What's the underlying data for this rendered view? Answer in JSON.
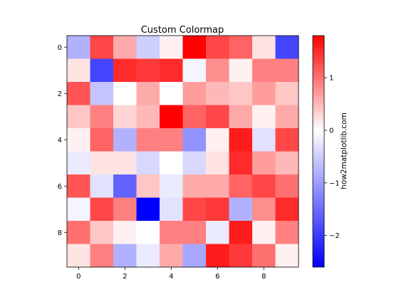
{
  "chart_data": {
    "type": "heatmap",
    "title": "Custom Colormap",
    "xlabel": "",
    "ylabel": "",
    "x_ticks": [
      0,
      2,
      4,
      6,
      8
    ],
    "y_ticks": [
      0,
      2,
      4,
      6,
      8
    ],
    "colorbar": {
      "label": "how2matplotlib.com",
      "vmin": -2.6,
      "vmax": 1.8,
      "ticks": [
        1,
        0,
        -1,
        -2
      ],
      "tick_labels": [
        "1",
        "0",
        "−1",
        "−2"
      ],
      "colormap": [
        "#0000ff",
        "#ffffff",
        "#ff0000"
      ]
    },
    "values": [
      [
        -0.8,
        1.3,
        0.6,
        -0.5,
        0.1,
        1.8,
        1.3,
        1.1,
        0.2,
        -1.9
      ],
      [
        0.2,
        -1.9,
        1.5,
        1.4,
        1.5,
        -0.1,
        0.8,
        0.1,
        0.9,
        0.9
      ],
      [
        1.2,
        -0.6,
        0.0,
        0.6,
        0.0,
        0.7,
        0.5,
        0.4,
        0.7,
        0.4
      ],
      [
        0.4,
        0.9,
        0.3,
        0.5,
        1.8,
        1.1,
        1.3,
        0.6,
        0.1,
        0.6
      ],
      [
        0.1,
        1.1,
        -0.8,
        0.9,
        0.9,
        -1.1,
        0.1,
        1.6,
        -0.3,
        1.3
      ],
      [
        -0.2,
        0.2,
        0.2,
        -0.4,
        0.0,
        -0.4,
        0.2,
        1.5,
        0.7,
        0.5
      ],
      [
        1.2,
        -0.3,
        -1.6,
        0.4,
        -0.2,
        0.6,
        0.6,
        1.1,
        1.3,
        1.0
      ],
      [
        -0.1,
        1.3,
        0.9,
        -2.6,
        -0.3,
        1.3,
        1.4,
        -0.8,
        0.8,
        1.5
      ],
      [
        1.0,
        0.4,
        0.1,
        0.0,
        0.9,
        0.9,
        -0.2,
        1.6,
        0.1,
        0.9
      ],
      [
        0.2,
        0.9,
        -0.8,
        -0.2,
        0.6,
        -0.9,
        1.6,
        1.4,
        1.0,
        0.1
      ]
    ]
  }
}
